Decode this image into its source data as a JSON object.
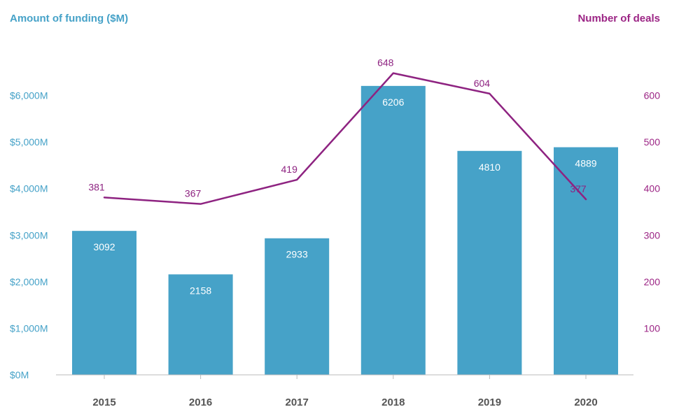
{
  "chart_data": {
    "type": "bar",
    "categories": [
      "2015",
      "2016",
      "2017",
      "2018",
      "2019",
      "2020"
    ],
    "series": [
      {
        "name": "Amount of funding ($M)",
        "type": "bar",
        "axis": "left",
        "values": [
          3092,
          2158,
          2933,
          6206,
          4810,
          4889
        ],
        "labels": [
          "3092",
          "2158",
          "2933",
          "6206",
          "4810",
          "4889"
        ]
      },
      {
        "name": "Number of deals",
        "type": "line",
        "axis": "right",
        "values": [
          381,
          367,
          419,
          648,
          604,
          377
        ],
        "labels": [
          "381",
          "367",
          "419",
          "648",
          "604",
          "377"
        ]
      }
    ],
    "left_axis": {
      "title": "Amount of funding ($M)",
      "ylim": [
        0,
        7000
      ],
      "ticks": [
        0,
        1000,
        2000,
        3000,
        4000,
        5000,
        6000
      ],
      "tick_labels": [
        "$0M",
        "$1,000M",
        "$2,000M",
        "$3,000M",
        "$4,000M",
        "$5,000M",
        "$6,000M"
      ]
    },
    "right_axis": {
      "title": "Number of deals",
      "ylim": [
        0,
        700
      ],
      "ticks": [
        100,
        200,
        300,
        400,
        500,
        600
      ],
      "tick_labels": [
        "100",
        "200",
        "300",
        "400",
        "500",
        "600"
      ]
    },
    "grid": false,
    "legend": "none",
    "colors": {
      "bar": "#46a2c8",
      "line": "#8e2381",
      "left_axis_text": "#46a2c8",
      "right_axis_text": "#9c2585",
      "x_axis_text": "#555555",
      "axis_line": "#bbbbbb"
    }
  }
}
